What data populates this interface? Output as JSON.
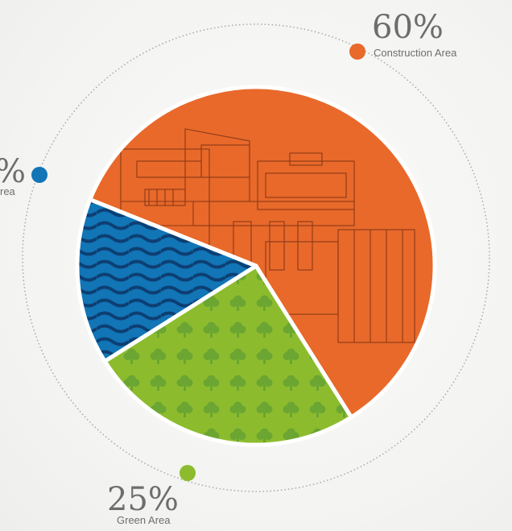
{
  "chart_data": {
    "type": "pie",
    "slices": [
      {
        "label": "Construction Area",
        "value": 60,
        "value_label": "60%",
        "color": "#e8692a",
        "pattern": "building"
      },
      {
        "label": "Green Area",
        "value": 25,
        "value_label": "25%",
        "color": "#8cbc2e",
        "pattern": "trees"
      },
      {
        "label": "Water Area",
        "value": 15,
        "value_label": "%",
        "label_visible": "rea",
        "color": "#1175b6",
        "pattern": "waves"
      }
    ],
    "title": "",
    "legend": "outside-callouts"
  }
}
